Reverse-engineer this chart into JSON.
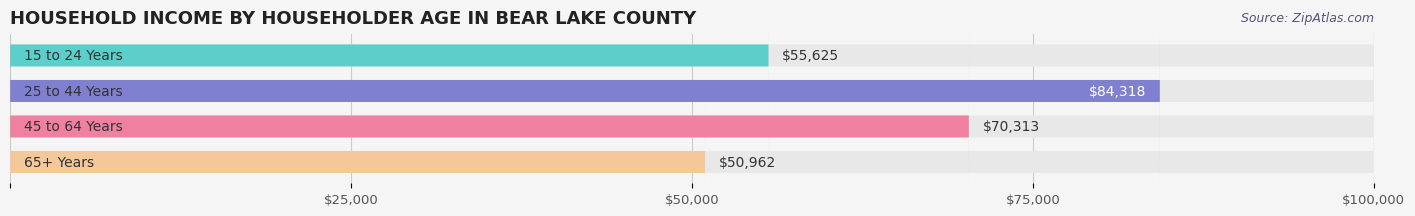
{
  "title": "HOUSEHOLD INCOME BY HOUSEHOLDER AGE IN BEAR LAKE COUNTY",
  "source": "Source: ZipAtlas.com",
  "categories": [
    "15 to 24 Years",
    "25 to 44 Years",
    "45 to 64 Years",
    "65+ Years"
  ],
  "values": [
    55625,
    84318,
    70313,
    50962
  ],
  "bar_colors": [
    "#5DCFCA",
    "#8080D0",
    "#F080A0",
    "#F5C89A"
  ],
  "label_colors": [
    "#333333",
    "#ffffff",
    "#333333",
    "#333333"
  ],
  "value_labels": [
    "$55,625",
    "$84,318",
    "$70,313",
    "$50,962"
  ],
  "xlim": [
    0,
    100000
  ],
  "xticks": [
    0,
    25000,
    50000,
    75000,
    100000
  ],
  "xtick_labels": [
    "",
    "$25,000",
    "$50,000",
    "$75,000",
    "$100,000"
  ],
  "background_color": "#f5f5f5",
  "bar_background_color": "#e8e8e8",
  "bar_height": 0.62,
  "title_fontsize": 13,
  "label_fontsize": 10,
  "value_fontsize": 10,
  "tick_fontsize": 9.5,
  "source_fontsize": 9
}
